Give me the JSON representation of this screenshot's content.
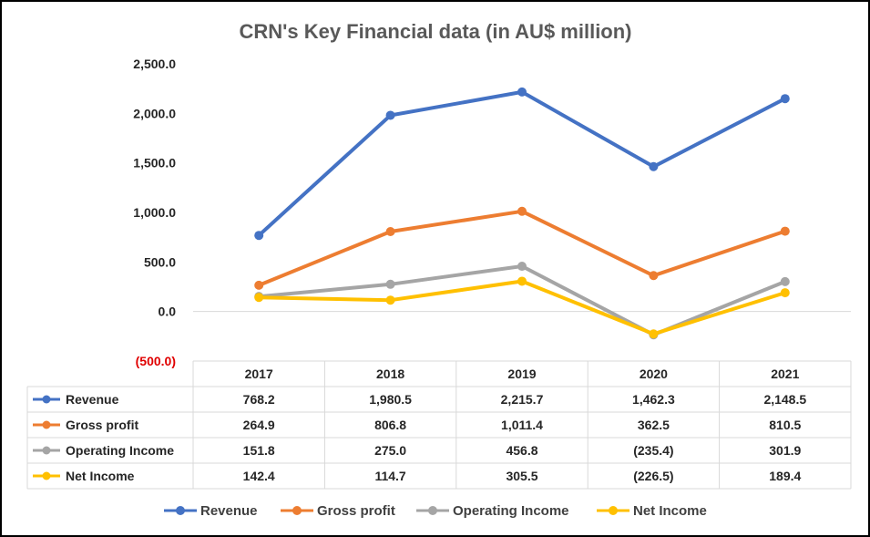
{
  "chart_data": {
    "type": "line",
    "title": "CRN's Key Financial data (in AU$ million)",
    "x": [
      "2017",
      "2018",
      "2019",
      "2020",
      "2021"
    ],
    "ylim": [
      -500,
      2500
    ],
    "yticks": [
      -500,
      0,
      500,
      1000,
      1500,
      2000,
      2500
    ],
    "ytick_labels": [
      "(500.0)",
      "0.0",
      "500.0",
      "1,000.0",
      "1,500.0",
      "2,000.0",
      "2,500.0"
    ],
    "grid": false,
    "legend": "bottom",
    "data_table": true,
    "series": [
      {
        "name": "Revenue",
        "color": "#4472c4",
        "values": [
          768.2,
          1980.5,
          2215.7,
          1462.3,
          2148.5
        ],
        "labels": [
          "768.2",
          "1,980.5",
          "2,215.7",
          "1,462.3",
          "2,148.5"
        ]
      },
      {
        "name": "Gross profit",
        "color": "#ed7d31",
        "values": [
          264.9,
          806.8,
          1011.4,
          362.5,
          810.5
        ],
        "labels": [
          "264.9",
          "806.8",
          "1,011.4",
          "362.5",
          "810.5"
        ]
      },
      {
        "name": "Operating Income",
        "color": "#a5a5a5",
        "values": [
          151.8,
          275.0,
          456.8,
          -235.4,
          301.9
        ],
        "labels": [
          "151.8",
          "275.0",
          "456.8",
          "(235.4)",
          "301.9"
        ]
      },
      {
        "name": "Net Income",
        "color": "#ffc000",
        "values": [
          142.4,
          114.7,
          305.5,
          -226.5,
          189.4
        ],
        "labels": [
          "142.4",
          "114.7",
          "305.5",
          "(226.5)",
          "189.4"
        ]
      }
    ]
  }
}
